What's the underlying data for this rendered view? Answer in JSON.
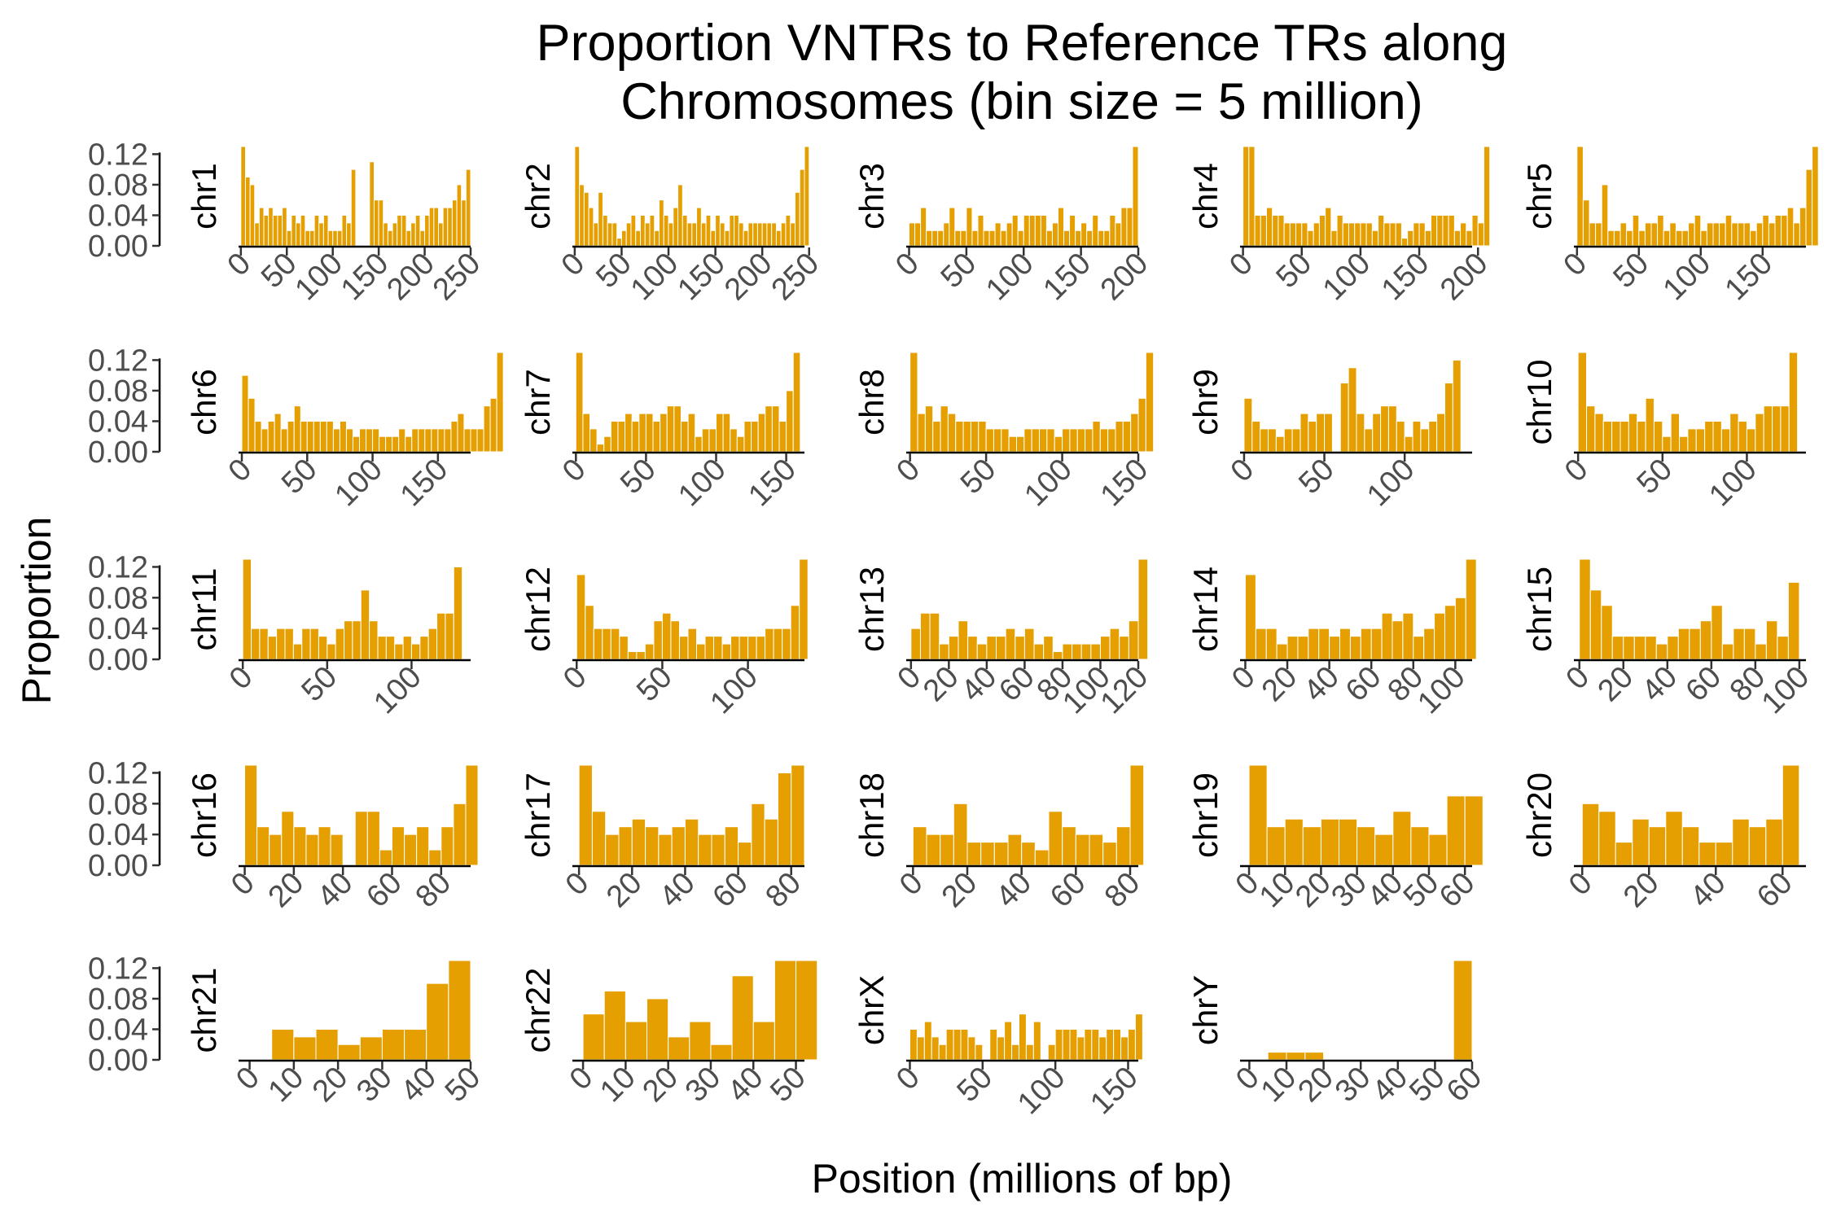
{
  "chart_data": {
    "type": "bar",
    "title_lines": [
      "Proportion VNTRs to Reference TRs along",
      "Chromosomes (bin size = 5 million)"
    ],
    "xlabel": "Position (millions of bp)",
    "ylabel": "Proportion",
    "ylim": [
      0,
      0.13
    ],
    "y_ticks": [
      "0.00",
      "0.04",
      "0.08",
      "0.12"
    ],
    "bin_size": 5,
    "bar_color": "#E69F00",
    "grid": false,
    "panels": [
      {
        "name": "chr1",
        "xlim": [
          -2.5,
          250
        ],
        "x_ticks": [
          0,
          50,
          100,
          150,
          200,
          250
        ],
        "x_tick_labels": [
          "0",
          "50",
          "100",
          "150",
          "200",
          "250"
        ],
        "values": [
          0.13,
          0.09,
          0.08,
          0.03,
          0.05,
          0.04,
          0.05,
          0.04,
          0.04,
          0.05,
          0.02,
          0.04,
          0.03,
          0.04,
          0.02,
          0.02,
          0.04,
          0.03,
          0.04,
          0.02,
          0.02,
          0.02,
          0.04,
          0.03,
          0.1,
          null,
          null,
          null,
          0.11,
          0.06,
          0.06,
          0.03,
          0.02,
          0.03,
          0.04,
          0.04,
          0.02,
          0.03,
          0.04,
          0.02,
          0.04,
          0.05,
          0.05,
          0.03,
          0.05,
          0.05,
          0.06,
          0.08,
          0.06,
          0.1
        ]
      },
      {
        "name": "chr2",
        "xlim": [
          -2.5,
          245
        ],
        "x_ticks": [
          0,
          50,
          100,
          150,
          200,
          250
        ],
        "x_tick_labels": [
          "0",
          "50",
          "100",
          "150",
          "200",
          "250"
        ],
        "values": [
          0.13,
          0.08,
          0.07,
          0.05,
          0.03,
          0.07,
          0.04,
          0.03,
          0.03,
          0.01,
          0.02,
          0.03,
          0.04,
          0.02,
          0.04,
          0.03,
          0.04,
          0.02,
          0.06,
          0.04,
          0.03,
          0.05,
          0.08,
          0.04,
          0.03,
          0.03,
          0.05,
          0.03,
          0.04,
          0.02,
          0.04,
          0.03,
          0.02,
          0.04,
          0.04,
          0.03,
          0.02,
          0.03,
          0.03,
          0.03,
          0.03,
          0.03,
          0.03,
          0.02,
          0.03,
          0.04,
          0.03,
          0.07,
          0.1,
          0.13
        ]
      },
      {
        "name": "chr3",
        "xlim": [
          -2.5,
          200
        ],
        "x_ticks": [
          0,
          50,
          100,
          150,
          200
        ],
        "x_tick_labels": [
          "0",
          "50",
          "100",
          "150",
          "200"
        ],
        "values": [
          0.03,
          0.03,
          0.05,
          0.02,
          0.02,
          0.02,
          0.03,
          0.05,
          0.02,
          0.02,
          0.05,
          0.02,
          0.04,
          0.02,
          0.02,
          0.03,
          0.02,
          0.03,
          0.04,
          0.02,
          0.04,
          0.04,
          0.04,
          0.04,
          0.02,
          0.03,
          0.05,
          0.02,
          0.04,
          0.02,
          0.03,
          0.02,
          0.04,
          0.02,
          0.02,
          0.04,
          0.03,
          0.05,
          0.05,
          0.13
        ]
      },
      {
        "name": "chr4",
        "xlim": [
          -2.5,
          195
        ],
        "x_ticks": [
          0,
          50,
          100,
          150,
          200
        ],
        "x_tick_labels": [
          "0",
          "50",
          "100",
          "150",
          "200"
        ],
        "values": [
          0.13,
          0.13,
          0.04,
          0.04,
          0.05,
          0.04,
          0.04,
          0.03,
          0.03,
          0.03,
          0.03,
          0.02,
          0.03,
          0.04,
          0.05,
          0.02,
          0.04,
          0.03,
          0.03,
          0.03,
          0.03,
          0.03,
          0.02,
          0.04,
          0.03,
          0.03,
          0.03,
          0.01,
          0.02,
          0.03,
          0.03,
          0.02,
          0.04,
          0.04,
          0.04,
          0.04,
          0.02,
          0.03,
          0.02,
          0.04,
          0.03,
          0.13
        ]
      },
      {
        "name": "chr5",
        "xlim": [
          -2.5,
          185
        ],
        "x_ticks": [
          0,
          50,
          100,
          150
        ],
        "x_tick_labels": [
          "0",
          "50",
          "100",
          "150"
        ],
        "values": [
          0.13,
          0.06,
          0.03,
          0.03,
          0.08,
          0.02,
          0.02,
          0.03,
          0.02,
          0.04,
          0.02,
          0.03,
          0.03,
          0.04,
          0.02,
          0.03,
          0.02,
          0.02,
          0.03,
          0.04,
          0.02,
          0.03,
          0.03,
          0.03,
          0.04,
          0.03,
          0.03,
          0.03,
          0.02,
          0.03,
          0.04,
          0.03,
          0.04,
          0.04,
          0.05,
          0.03,
          0.05,
          0.1,
          0.13
        ]
      },
      {
        "name": "chr6",
        "xlim": [
          -2.5,
          175
        ],
        "x_ticks": [
          0,
          50,
          100,
          150
        ],
        "x_tick_labels": [
          "0",
          "50",
          "100",
          "150"
        ],
        "values": [
          0.1,
          0.07,
          0.04,
          0.03,
          0.04,
          0.05,
          0.03,
          0.04,
          0.06,
          0.04,
          0.04,
          0.04,
          0.04,
          0.04,
          0.03,
          0.04,
          0.03,
          0.02,
          0.03,
          0.03,
          0.03,
          0.02,
          0.02,
          0.02,
          0.03,
          0.02,
          0.03,
          0.03,
          0.03,
          0.03,
          0.03,
          0.03,
          0.04,
          0.05,
          0.03,
          0.03,
          0.03,
          0.06,
          0.07,
          0.13
        ]
      },
      {
        "name": "chr7",
        "xlim": [
          -2.5,
          163
        ],
        "x_ticks": [
          0,
          50,
          100,
          150
        ],
        "x_tick_labels": [
          "0",
          "50",
          "100",
          "150"
        ],
        "values": [
          0.13,
          0.05,
          0.03,
          0.01,
          0.02,
          0.04,
          0.04,
          0.05,
          0.04,
          0.05,
          0.05,
          0.04,
          0.05,
          0.06,
          0.06,
          0.04,
          0.05,
          0.02,
          0.03,
          0.03,
          0.05,
          0.05,
          0.03,
          0.02,
          0.04,
          0.04,
          0.05,
          0.06,
          0.06,
          0.04,
          0.08,
          0.13
        ]
      },
      {
        "name": "chr8",
        "xlim": [
          -2.5,
          150
        ],
        "x_ticks": [
          0,
          50,
          100,
          150
        ],
        "x_tick_labels": [
          "0",
          "50",
          "100",
          "150"
        ],
        "values": [
          0.13,
          0.05,
          0.06,
          0.04,
          0.06,
          0.05,
          0.04,
          0.04,
          0.04,
          0.04,
          0.03,
          0.03,
          0.03,
          0.02,
          0.02,
          0.03,
          0.03,
          0.03,
          0.03,
          0.02,
          0.03,
          0.03,
          0.03,
          0.03,
          0.04,
          0.03,
          0.03,
          0.04,
          0.04,
          0.05,
          0.07,
          0.13
        ]
      },
      {
        "name": "chr9",
        "xlim": [
          -2.5,
          142
        ],
        "x_ticks": [
          0,
          50,
          100
        ],
        "x_tick_labels": [
          "0",
          "50",
          "100"
        ],
        "values": [
          0.07,
          0.04,
          0.03,
          0.03,
          0.02,
          0.03,
          0.03,
          0.05,
          0.04,
          0.05,
          0.05,
          null,
          0.09,
          0.11,
          0.05,
          0.03,
          0.05,
          0.06,
          0.06,
          0.04,
          0.02,
          0.04,
          0.03,
          0.04,
          0.05,
          0.09,
          0.12
        ]
      },
      {
        "name": "chr10",
        "xlim": [
          -2.5,
          135
        ],
        "x_ticks": [
          0,
          50,
          100
        ],
        "x_tick_labels": [
          "0",
          "50",
          "100"
        ],
        "values": [
          0.13,
          0.06,
          0.05,
          0.04,
          0.04,
          0.04,
          0.05,
          0.04,
          0.07,
          0.04,
          0.02,
          0.05,
          0.02,
          0.03,
          0.03,
          0.04,
          0.04,
          0.03,
          0.05,
          0.04,
          0.03,
          0.05,
          0.06,
          0.06,
          0.06,
          0.13
        ]
      },
      {
        "name": "chr11",
        "xlim": [
          -2.5,
          135
        ],
        "x_ticks": [
          0,
          50,
          100
        ],
        "x_tick_labels": [
          "0",
          "50",
          "100"
        ],
        "values": [
          0.13,
          0.04,
          0.04,
          0.03,
          0.04,
          0.04,
          0.02,
          0.04,
          0.04,
          0.03,
          0.02,
          0.04,
          0.05,
          0.05,
          0.09,
          0.05,
          0.03,
          0.03,
          0.02,
          0.03,
          0.02,
          0.03,
          0.04,
          0.06,
          0.06,
          0.12
        ]
      },
      {
        "name": "chr12",
        "xlim": [
          -2.5,
          133
        ],
        "x_ticks": [
          0,
          50,
          100
        ],
        "x_tick_labels": [
          "0",
          "50",
          "100"
        ],
        "values": [
          0.11,
          0.07,
          0.04,
          0.04,
          0.04,
          0.03,
          0.01,
          0.01,
          0.02,
          0.05,
          0.06,
          0.05,
          0.03,
          0.04,
          0.02,
          0.03,
          0.03,
          0.02,
          0.03,
          0.03,
          0.03,
          0.03,
          0.04,
          0.04,
          0.04,
          0.07,
          0.13
        ]
      },
      {
        "name": "chr13",
        "xlim": [
          -2.5,
          120
        ],
        "x_ticks": [
          0,
          20,
          40,
          60,
          80,
          100,
          120
        ],
        "x_tick_labels": [
          "0",
          "20",
          "40",
          "60",
          "80",
          "100",
          "120"
        ],
        "values": [
          0.04,
          0.06,
          0.06,
          0.02,
          0.03,
          0.05,
          0.03,
          0.02,
          0.03,
          0.03,
          0.04,
          0.03,
          0.04,
          0.02,
          0.03,
          0.01,
          0.02,
          0.02,
          0.02,
          0.02,
          0.03,
          0.04,
          0.03,
          0.05,
          0.13
        ]
      },
      {
        "name": "chr14",
        "xlim": [
          -2.5,
          108
        ],
        "x_ticks": [
          0,
          20,
          40,
          60,
          80,
          100
        ],
        "x_tick_labels": [
          "0",
          "20",
          "40",
          "60",
          "80",
          "100"
        ],
        "values": [
          0.11,
          0.04,
          0.04,
          0.02,
          0.03,
          0.03,
          0.04,
          0.04,
          0.03,
          0.04,
          0.03,
          0.04,
          0.04,
          0.06,
          0.05,
          0.06,
          0.03,
          0.04,
          0.06,
          0.07,
          0.08,
          0.13
        ]
      },
      {
        "name": "chr15",
        "xlim": [
          -2.5,
          103
        ],
        "x_ticks": [
          0,
          20,
          40,
          60,
          80,
          100
        ],
        "x_tick_labels": [
          "0",
          "20",
          "40",
          "60",
          "80",
          "100"
        ],
        "values": [
          0.13,
          0.09,
          0.07,
          0.03,
          0.03,
          0.03,
          0.03,
          0.02,
          0.03,
          0.04,
          0.04,
          0.05,
          0.07,
          0.02,
          0.04,
          0.04,
          0.02,
          0.05,
          0.03,
          0.1
        ]
      },
      {
        "name": "chr16",
        "xlim": [
          -2.5,
          92
        ],
        "x_ticks": [
          0,
          20,
          40,
          60,
          80
        ],
        "x_tick_labels": [
          "0",
          "20",
          "40",
          "60",
          "80"
        ],
        "values": [
          0.13,
          0.05,
          0.04,
          0.07,
          0.05,
          0.04,
          0.05,
          0.04,
          null,
          0.07,
          0.07,
          0.02,
          0.05,
          0.04,
          0.05,
          0.02,
          0.05,
          0.08,
          0.13
        ]
      },
      {
        "name": "chr17",
        "xlim": [
          -2.5,
          85
        ],
        "x_ticks": [
          0,
          20,
          40,
          60,
          80
        ],
        "x_tick_labels": [
          "0",
          "20",
          "40",
          "60",
          "80"
        ],
        "values": [
          0.13,
          0.07,
          0.04,
          0.05,
          0.06,
          0.05,
          0.04,
          0.05,
          0.06,
          0.04,
          0.04,
          0.05,
          0.03,
          0.08,
          0.06,
          0.12,
          0.13
        ]
      },
      {
        "name": "chr18",
        "xlim": [
          -2.5,
          83
        ],
        "x_ticks": [
          0,
          20,
          40,
          60,
          80
        ],
        "x_tick_labels": [
          "0",
          "20",
          "40",
          "60",
          "80"
        ],
        "values": [
          0.05,
          0.04,
          0.04,
          0.08,
          0.03,
          0.03,
          0.03,
          0.04,
          0.03,
          0.02,
          0.07,
          0.05,
          0.04,
          0.04,
          0.03,
          0.05,
          0.13
        ]
      },
      {
        "name": "chr19",
        "xlim": [
          -2.5,
          62
        ],
        "x_ticks": [
          0,
          10,
          20,
          30,
          40,
          50,
          60
        ],
        "x_tick_labels": [
          "0",
          "10",
          "20",
          "30",
          "40",
          "50",
          "60"
        ],
        "values": [
          0.13,
          0.05,
          0.06,
          0.05,
          0.06,
          0.06,
          0.05,
          0.04,
          0.07,
          0.05,
          0.04,
          0.09,
          0.09
        ]
      },
      {
        "name": "chr20",
        "xlim": [
          -2.5,
          67
        ],
        "x_ticks": [
          0,
          20,
          40,
          60
        ],
        "x_tick_labels": [
          "0",
          "20",
          "40",
          "60"
        ],
        "values": [
          0.08,
          0.07,
          0.03,
          0.06,
          0.05,
          0.07,
          0.05,
          0.03,
          0.03,
          0.06,
          0.05,
          0.06,
          0.13
        ]
      },
      {
        "name": "chr21",
        "xlim": [
          -2.5,
          50
        ],
        "x_ticks": [
          0,
          10,
          20,
          30,
          40,
          50
        ],
        "x_tick_labels": [
          "0",
          "10",
          "20",
          "30",
          "40",
          "50"
        ],
        "values": [
          null,
          0.04,
          0.03,
          0.04,
          0.02,
          0.03,
          0.04,
          0.04,
          0.1,
          0.13
        ]
      },
      {
        "name": "chr22",
        "xlim": [
          -2.5,
          52
        ],
        "x_ticks": [
          0,
          10,
          20,
          30,
          40,
          50
        ],
        "x_tick_labels": [
          "0",
          "10",
          "20",
          "30",
          "40",
          "50"
        ],
        "values": [
          0.06,
          0.09,
          0.05,
          0.08,
          0.03,
          0.05,
          0.02,
          0.11,
          0.05,
          0.13,
          0.13
        ]
      },
      {
        "name": "chrX",
        "xlim": [
          -2.5,
          157
        ],
        "x_ticks": [
          0,
          50,
          100,
          150
        ],
        "x_tick_labels": [
          "0",
          "50",
          "100",
          "150"
        ],
        "values": [
          0.04,
          0.03,
          0.05,
          0.03,
          0.02,
          0.04,
          0.04,
          0.04,
          0.03,
          0.02,
          null,
          0.04,
          0.03,
          0.05,
          0.02,
          0.06,
          0.02,
          0.05,
          null,
          0.02,
          0.04,
          0.04,
          0.04,
          0.03,
          0.04,
          0.04,
          0.03,
          0.04,
          0.04,
          0.03,
          0.04,
          0.06
        ]
      },
      {
        "name": "chrY",
        "xlim": [
          -2.5,
          60
        ],
        "x_ticks": [
          0,
          10,
          20,
          30,
          40,
          50,
          60
        ],
        "x_tick_labels": [
          "0",
          "10",
          "20",
          "30",
          "40",
          "50",
          "60"
        ],
        "values": [
          null,
          0.01,
          0.01,
          0.01,
          null,
          null,
          null,
          null,
          null,
          null,
          null,
          0.13
        ]
      }
    ]
  }
}
